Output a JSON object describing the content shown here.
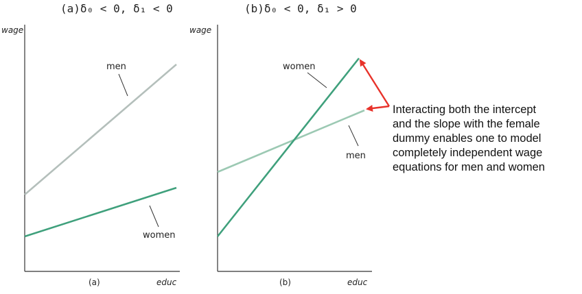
{
  "panel_a": {
    "title": "(a)δ₀ < 0, δ₁ < 0",
    "ylabel": "wage",
    "xlabel": "educ",
    "panel_label": "(a)",
    "men_label": "men",
    "women_label": "women"
  },
  "panel_b": {
    "title": "(b)δ₀ < 0, δ₁ > 0",
    "ylabel": "wage",
    "xlabel": "educ",
    "panel_label": "(b)",
    "men_label": "men",
    "women_label": "women"
  },
  "callout": {
    "text": "Interacting both the intercept\nand the slope with the female\ndummy enables one to model\ncompletely independent wage\nequations for men and women"
  },
  "colors": {
    "men": "#b4bfbb",
    "women": "#3fa07c",
    "men_b": "#9cc9b3",
    "arrow": "#e8322a"
  }
}
